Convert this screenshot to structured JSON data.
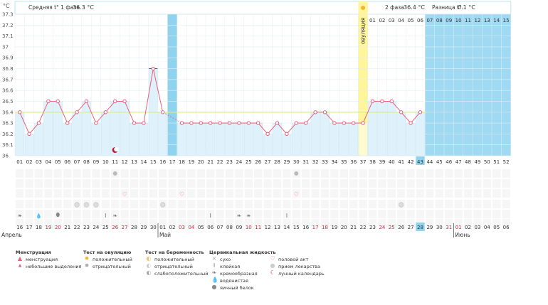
{
  "chart_data": {
    "type": "line",
    "unit": "°C",
    "y_ticks": [
      "37.3",
      "37.2",
      "37.1",
      "37",
      "36.9",
      "36.8",
      "36.7",
      "36.6",
      "36.5",
      "36.4",
      "36.3",
      "36.2",
      "36.1",
      "36"
    ],
    "ylim": [
      36,
      37.3
    ],
    "cycle_days": [
      "01",
      "02",
      "03",
      "04",
      "05",
      "06",
      "07",
      "08",
      "09",
      "10",
      "11",
      "12",
      "13",
      "14",
      "15",
      "16",
      "17",
      "18",
      "19",
      "20",
      "21",
      "22",
      "23",
      "24",
      "25",
      "26",
      "27",
      "28",
      "29",
      "30",
      "31",
      "32",
      "33",
      "34",
      "35",
      "36",
      "37",
      "38",
      "39",
      "40",
      "41",
      "42",
      "43",
      "44",
      "45",
      "46",
      "47",
      "48",
      "49",
      "50",
      "51",
      "52"
    ],
    "dates": [
      "16",
      "17",
      "18",
      "19",
      "20",
      "21",
      "22",
      "23",
      "24",
      "25",
      "26",
      "27",
      "28",
      "29",
      "30",
      "01",
      "02",
      "03",
      "04",
      "05",
      "06",
      "07",
      "08",
      "09",
      "10",
      "11",
      "12",
      "13",
      "14",
      "15",
      "16",
      "17",
      "18",
      "19",
      "20",
      "21",
      "22",
      "23",
      "24",
      "25",
      "26",
      "27",
      "28",
      "29",
      "30",
      "31",
      "01",
      "02",
      "03",
      "04",
      "05",
      "06"
    ],
    "red_date_indices": [
      3,
      4,
      10,
      11,
      17,
      18,
      24,
      25,
      31,
      32,
      38,
      39,
      45,
      46
    ],
    "months": [
      {
        "label": "Апрель",
        "start_index": 0
      },
      {
        "label": "Май",
        "start_index": 15
      },
      {
        "label": "Июнь",
        "start_index": 46
      }
    ],
    "temperatures": [
      36.4,
      36.2,
      36.3,
      36.5,
      36.5,
      36.3,
      36.4,
      36.5,
      36.3,
      36.4,
      36.5,
      36.5,
      36.3,
      36.3,
      36.8,
      36.4,
      null,
      36.3,
      36.3,
      36.3,
      36.3,
      36.3,
      36.3,
      36.3,
      36.3,
      36.3,
      36.2,
      36.3,
      36.2,
      36.3,
      36.3,
      36.4,
      36.4,
      36.3,
      36.3,
      36.3,
      36.3,
      36.5,
      36.5,
      36.5,
      36.4,
      36.3,
      36.4
    ],
    "excluded_day_indices": [
      16
    ],
    "coverline": 36.4,
    "ovulation_day_index": 36,
    "ovulation_label": "овуляция",
    "current_day_index": 42,
    "phase1_label": "Средняя t° 1 фаза",
    "phase1_avg": "36.3 °C",
    "phase2_label": "2 фаза",
    "phase2_avg": "36.4 °C",
    "diff_label": "Разница t°",
    "diff_value": "0.1 °C",
    "phase2_days": [
      "01",
      "02",
      "03",
      "04",
      "05",
      "06",
      "07",
      "08",
      "09",
      "10",
      "11",
      "12",
      "13",
      "14",
      "15"
    ],
    "markers": {
      "lunar": [
        10
      ],
      "ovulation_test_negative": [
        10,
        29
      ],
      "pregnancy_positive": [
        11,
        17,
        29
      ],
      "medication": [
        15,
        40
      ],
      "mucus": [
        {
          "i": 0,
          "k": "creamy"
        },
        {
          "i": 2,
          "k": "watery"
        },
        {
          "i": 4,
          "k": "eggwhite"
        },
        {
          "i": 6,
          "k": "med"
        },
        {
          "i": 7,
          "k": "med"
        },
        {
          "i": 8,
          "k": "med"
        },
        {
          "i": 9,
          "k": "sticky"
        },
        {
          "i": 10,
          "k": "creamy"
        },
        {
          "i": 20,
          "k": "sticky"
        },
        {
          "i": 23,
          "k": "creamy"
        },
        {
          "i": 24,
          "k": "creamy"
        },
        {
          "i": 28,
          "k": "sticky"
        }
      ]
    },
    "colors": {
      "bg": "#9fd9f2",
      "chart_bg": "#ffffff",
      "bar": "#dff1fb",
      "line": "#e8607a",
      "ovulation": "#fff59a",
      "coverline": "#d8f27a",
      "excluded": "#8fd3ef",
      "weekend": "#e0213c"
    }
  },
  "legend": {
    "menstruation": {
      "title": "Менструация",
      "items": [
        "менструация",
        "небольшие выделения"
      ]
    },
    "ovulation_test": {
      "title": "Тест на овуляцию",
      "items": [
        "положительный",
        "отрицательный"
      ]
    },
    "pregnancy_test": {
      "title": "Тест на беременность",
      "items": [
        "положительный",
        "отрицательный",
        "слабоположительный"
      ]
    },
    "cervical": {
      "title": "Цервикальная жидкость",
      "items": [
        "сухо",
        "клейкая",
        "кремообразная",
        "водянистая",
        "яичный белок"
      ]
    },
    "other": {
      "items": [
        "половой акт",
        "прием лекарства",
        "лунный календарь"
      ]
    }
  }
}
